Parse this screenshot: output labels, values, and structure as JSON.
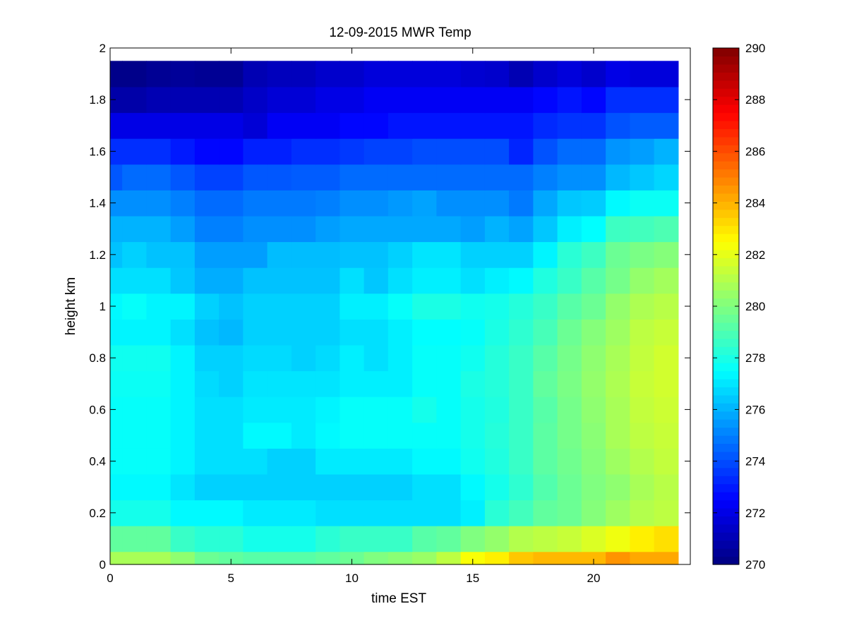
{
  "chart_data": {
    "type": "heatmap",
    "title": "12-09-2015 MWR Temp",
    "xlabel": "time EST",
    "ylabel": "height km",
    "xlim": [
      0,
      24
    ],
    "ylim": [
      0,
      2
    ],
    "xticks": [
      "0",
      "5",
      "10",
      "15",
      "20"
    ],
    "yticks": [
      "0",
      "0.2",
      "0.4",
      "0.6",
      "0.8",
      "1",
      "1.2",
      "1.4",
      "1.6",
      "1.8",
      "2"
    ],
    "colorbar": {
      "colormap": "jet",
      "range": [
        270,
        290
      ],
      "ticks": [
        "270",
        "272",
        "274",
        "276",
        "278",
        "280",
        "282",
        "284",
        "286",
        "288",
        "290"
      ]
    },
    "x_centers": [
      0,
      1,
      2,
      3,
      4,
      5,
      6,
      7,
      8,
      9,
      10,
      11,
      12,
      13,
      14,
      15,
      16,
      17,
      18,
      19,
      20,
      21,
      22,
      23
    ],
    "heights_km": [
      0,
      0.1,
      0.2,
      0.3,
      0.4,
      0.5,
      0.6,
      0.7,
      0.8,
      0.9,
      1.0,
      1.1,
      1.2,
      1.3,
      1.4,
      1.5,
      1.6,
      1.7,
      1.8,
      1.9,
      2.0
    ],
    "temperature_K": [
      [
        280.8,
        280.8,
        280.8,
        280.3,
        279.6,
        279.4,
        279.2,
        279.2,
        279.2,
        279.4,
        279.6,
        280.0,
        280.2,
        280.5,
        281.2,
        282.4,
        282.8,
        283.6,
        283.9,
        283.9,
        283.9,
        284.6,
        284.2,
        284.2
      ],
      [
        279.4,
        279.4,
        279.4,
        278.6,
        278.3,
        278.3,
        277.9,
        277.9,
        277.9,
        278.3,
        278.6,
        278.6,
        278.6,
        279.2,
        279.4,
        280.0,
        280.4,
        281.0,
        281.2,
        281.4,
        281.8,
        282.2,
        282.8,
        283.1
      ],
      [
        277.9,
        277.9,
        277.9,
        277.4,
        277.4,
        277.4,
        277.1,
        277.1,
        277.1,
        276.9,
        276.9,
        276.9,
        276.9,
        276.9,
        276.9,
        277.2,
        278.3,
        278.8,
        279.4,
        279.6,
        280.1,
        280.6,
        281.0,
        281.2
      ],
      [
        277.4,
        277.4,
        277.4,
        277.0,
        276.6,
        276.6,
        276.6,
        276.6,
        276.6,
        276.6,
        276.6,
        276.6,
        276.6,
        276.9,
        276.9,
        277.4,
        277.9,
        278.4,
        279.1,
        279.6,
        280.0,
        280.3,
        280.8,
        281.1
      ],
      [
        277.6,
        277.6,
        277.6,
        277.3,
        276.9,
        276.9,
        276.9,
        276.6,
        276.6,
        277.1,
        277.1,
        277.1,
        277.1,
        277.4,
        277.4,
        277.8,
        278.1,
        278.6,
        279.3,
        279.7,
        280.1,
        280.6,
        281.0,
        281.3
      ],
      [
        277.6,
        277.6,
        277.6,
        277.3,
        276.9,
        276.9,
        277.4,
        277.4,
        277.1,
        277.4,
        277.6,
        277.6,
        277.6,
        277.6,
        277.6,
        277.9,
        278.2,
        278.6,
        279.3,
        279.8,
        280.2,
        280.8,
        281.2,
        281.4
      ],
      [
        277.6,
        277.6,
        277.6,
        277.3,
        276.9,
        276.9,
        277.1,
        277.1,
        277.1,
        277.3,
        277.6,
        277.6,
        277.6,
        277.9,
        277.6,
        277.9,
        278.1,
        278.6,
        279.2,
        279.8,
        280.3,
        280.8,
        281.3,
        281.5
      ],
      [
        277.7,
        277.7,
        277.7,
        277.3,
        276.8,
        276.6,
        277.0,
        277.0,
        277.0,
        277.0,
        277.2,
        277.2,
        277.2,
        277.6,
        277.6,
        278.0,
        278.2,
        278.6,
        279.4,
        279.9,
        280.4,
        280.9,
        281.4,
        281.6
      ],
      [
        277.8,
        277.8,
        277.8,
        277.3,
        276.6,
        276.6,
        276.8,
        276.8,
        276.6,
        276.8,
        277.2,
        276.9,
        277.2,
        277.6,
        277.6,
        277.8,
        278.2,
        278.6,
        279.2,
        279.8,
        280.3,
        280.8,
        281.3,
        281.6
      ],
      [
        277.3,
        277.3,
        277.3,
        276.9,
        276.3,
        276.1,
        276.6,
        276.6,
        276.6,
        276.6,
        276.9,
        276.9,
        277.2,
        277.5,
        277.5,
        277.6,
        278.0,
        278.4,
        278.9,
        279.6,
        280.1,
        280.6,
        281.2,
        281.4
      ],
      [
        277.4,
        277.6,
        277.3,
        277.3,
        276.6,
        276.3,
        276.6,
        276.6,
        276.6,
        276.6,
        277.2,
        277.2,
        277.6,
        278.0,
        278.0,
        277.8,
        277.9,
        278.2,
        278.6,
        279.2,
        279.6,
        280.4,
        280.9,
        281.1
      ],
      [
        276.9,
        276.9,
        276.9,
        276.4,
        275.9,
        275.9,
        276.3,
        276.3,
        276.3,
        276.3,
        276.9,
        276.4,
        276.9,
        277.2,
        277.2,
        276.9,
        277.2,
        277.4,
        278.1,
        278.6,
        279.2,
        279.8,
        280.4,
        280.7
      ],
      [
        276.3,
        276.6,
        276.3,
        276.3,
        275.6,
        275.6,
        275.6,
        276.2,
        276.2,
        276.2,
        276.3,
        276.3,
        276.6,
        277.0,
        277.0,
        276.6,
        276.6,
        276.6,
        277.3,
        278.3,
        278.7,
        279.6,
        279.9,
        280.1
      ],
      [
        276.0,
        276.0,
        276.0,
        275.6,
        275.0,
        275.0,
        275.3,
        275.3,
        275.3,
        275.6,
        275.8,
        275.8,
        275.8,
        275.8,
        275.8,
        275.6,
        276.0,
        275.7,
        276.4,
        277.2,
        277.5,
        278.7,
        278.8,
        279.0
      ],
      [
        275.3,
        275.3,
        275.3,
        275.0,
        274.6,
        274.6,
        274.9,
        274.9,
        274.9,
        275.0,
        275.3,
        275.3,
        275.5,
        275.7,
        275.3,
        275.3,
        275.3,
        274.9,
        275.8,
        276.4,
        276.5,
        277.4,
        277.7,
        277.7
      ],
      [
        274.2,
        274.6,
        274.6,
        274.2,
        273.8,
        273.8,
        274.2,
        274.2,
        274.3,
        274.3,
        274.6,
        274.6,
        274.6,
        274.6,
        274.6,
        274.6,
        274.6,
        274.6,
        275.0,
        275.3,
        275.3,
        276.1,
        276.4,
        276.7
      ],
      [
        273.4,
        273.4,
        273.4,
        273.0,
        272.6,
        272.6,
        273.1,
        273.1,
        273.4,
        273.4,
        273.6,
        273.8,
        273.8,
        274.0,
        274.0,
        274.0,
        274.0,
        273.2,
        274.1,
        274.6,
        274.6,
        275.4,
        275.6,
        276.0
      ],
      [
        272.0,
        272.0,
        272.0,
        272.0,
        272.0,
        272.0,
        271.7,
        272.3,
        272.3,
        272.3,
        272.6,
        272.6,
        272.9,
        272.9,
        272.9,
        272.9,
        272.9,
        272.9,
        273.3,
        273.5,
        273.5,
        274.1,
        274.3,
        274.3
      ],
      [
        270.8,
        270.8,
        271.0,
        271.0,
        271.0,
        271.0,
        271.4,
        271.7,
        271.7,
        272.0,
        272.0,
        272.3,
        272.3,
        272.3,
        272.3,
        272.3,
        272.3,
        272.3,
        272.6,
        272.9,
        272.6,
        273.4,
        273.4,
        273.4
      ],
      [
        270.2,
        270.2,
        270.4,
        270.5,
        270.4,
        270.4,
        271.0,
        271.2,
        271.2,
        271.5,
        271.5,
        271.8,
        271.8,
        271.8,
        271.8,
        271.6,
        271.5,
        271.0,
        271.5,
        271.8,
        271.5,
        272.0,
        271.8,
        271.8
      ]
    ]
  }
}
